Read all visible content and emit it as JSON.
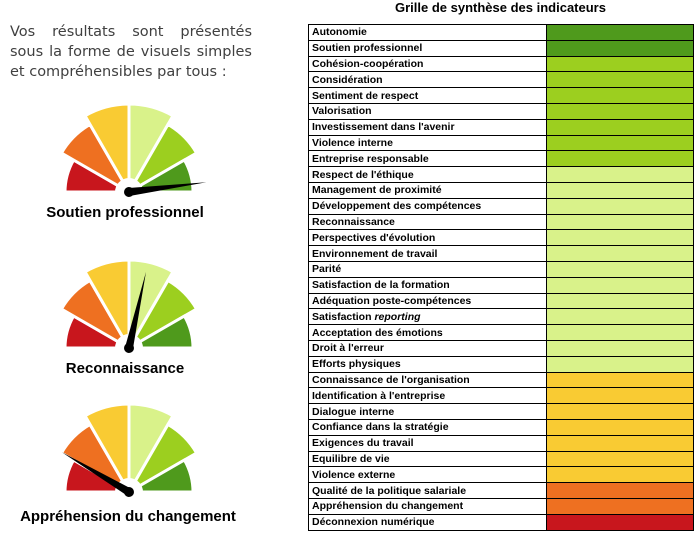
{
  "intro": {
    "text": "Vos résultats sont présentés sous la forme de visuels simples et compréhensibles par tous :"
  },
  "colors": {
    "dark_green": "#4f9a1c",
    "light_green": "#9ccf1f",
    "pale_green": "#d9f28a",
    "yellow": "#f9cb33",
    "orange": "#ee7021",
    "red": "#c8161d"
  },
  "gauges": [
    {
      "label": "Soutien professionnel",
      "needle_fraction": 0.96
    },
    {
      "label": "Reconnaissance",
      "needle_fraction": 0.57
    },
    {
      "label": "Appréhension du changement",
      "needle_fraction": 0.17
    }
  ],
  "grid": {
    "title": "Grille de synthèse des indicateurs",
    "rows": [
      {
        "label": "Autonomie",
        "color": "#4f9a1c"
      },
      {
        "label": "Soutien professionnel",
        "color": "#4f9a1c"
      },
      {
        "label": "Cohésion-coopération",
        "color": "#9ccf1f"
      },
      {
        "label": "Considération",
        "color": "#9ccf1f"
      },
      {
        "label": "Sentiment de respect",
        "color": "#9ccf1f"
      },
      {
        "label": "Valorisation",
        "color": "#9ccf1f"
      },
      {
        "label": "Investissement dans l'avenir",
        "color": "#9ccf1f"
      },
      {
        "label": "Violence interne",
        "color": "#9ccf1f"
      },
      {
        "label": "Entreprise responsable",
        "color": "#9ccf1f"
      },
      {
        "label": "Respect de l'éthique",
        "color": "#d9f28a"
      },
      {
        "label": "Management de proximité",
        "color": "#d9f28a"
      },
      {
        "label": "Développement des compétences",
        "color": "#d9f28a"
      },
      {
        "label": "Reconnaissance",
        "color": "#d9f28a"
      },
      {
        "label": "Perspectives d'évolution",
        "color": "#d9f28a"
      },
      {
        "label": "Environnement de travail",
        "color": "#d9f28a"
      },
      {
        "label": "Parité",
        "color": "#d9f28a"
      },
      {
        "label": "Satisfaction de la formation",
        "color": "#d9f28a"
      },
      {
        "label": "Adéquation poste-compétences",
        "color": "#d9f28a"
      },
      {
        "label": "Satisfaction ",
        "label_italic": "reporting",
        "color": "#d9f28a"
      },
      {
        "label": "Acceptation des émotions",
        "color": "#d9f28a"
      },
      {
        "label": "Droit à l'erreur",
        "color": "#d9f28a"
      },
      {
        "label": "Efforts physiques",
        "color": "#d9f28a"
      },
      {
        "label": "Connaissance de l'organisation",
        "color": "#f9cb33"
      },
      {
        "label": "Identification à l'entreprise",
        "color": "#f9cb33"
      },
      {
        "label": "Dialogue interne",
        "color": "#f9cb33"
      },
      {
        "label": "Confiance dans la stratégie",
        "color": "#f9cb33"
      },
      {
        "label": "Exigences du travail",
        "color": "#f9cb33"
      },
      {
        "label": "Equilibre de vie",
        "color": "#f9cb33"
      },
      {
        "label": "Violence externe",
        "color": "#f9cb33"
      },
      {
        "label": "Qualité de la politique salariale",
        "color": "#ee7021"
      },
      {
        "label": "Appréhension du changement",
        "color": "#ee7021"
      },
      {
        "label": "Déconnexion numérique",
        "color": "#c8161d"
      }
    ]
  }
}
